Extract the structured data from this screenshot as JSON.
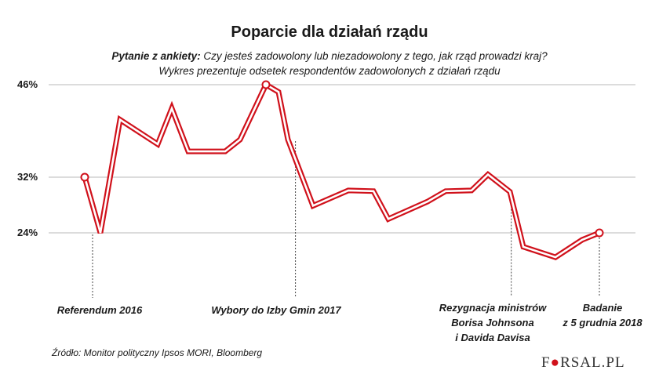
{
  "chart_data": {
    "type": "line",
    "title": "Poparcie dla działań rządu",
    "subtitle_label": "Pytanie z ankiety:",
    "subtitle_question": "Czy jesteś zadowolony lub niezadowolony z tego, jak rząd prowadzi kraj?",
    "subtitle_line2": "Wykres prezentuje odsetek respondentów zadowolonych z działań rządu",
    "yticks": [
      "46%",
      "32%",
      "24%"
    ],
    "ytick_values": [
      46,
      32,
      24
    ],
    "grid": true,
    "values": [
      32,
      24,
      40.7,
      37,
      42.4,
      35.9,
      35.9,
      37.7,
      46,
      44.9,
      37.7,
      27.9,
      30.1,
      30,
      26,
      28.5,
      30,
      30.1,
      32.4,
      29.9,
      22,
      20.5,
      23,
      24
    ],
    "highlighted_points": [
      0,
      8,
      23
    ],
    "line_color": "#d0111b",
    "annotations": [
      {
        "point": 0.5,
        "lines": [
          "Referendum 2016"
        ]
      },
      {
        "point": 10.3,
        "lines": [
          "Wybory do Izby Gmin 2017"
        ]
      },
      {
        "point": 19.1,
        "lines": [
          "Rezygnacja ministrów",
          "Borisa Johnsona",
          "i Davida Davisa"
        ]
      },
      {
        "point": 23,
        "lines": [
          "Badanie",
          "z 5 grudnia 2018"
        ]
      }
    ]
  },
  "source": "Źródło:  Monitor polityczny Ipsos MORI, Bloomberg",
  "logo": "FORSAL.PL"
}
